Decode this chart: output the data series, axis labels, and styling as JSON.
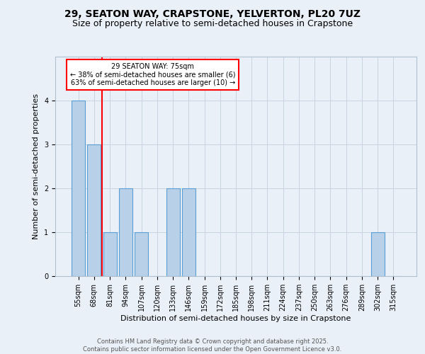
{
  "title_line1": "29, SEATON WAY, CRAPSTONE, YELVERTON, PL20 7UZ",
  "title_line2": "Size of property relative to semi-detached houses in Crapstone",
  "xlabel": "Distribution of semi-detached houses by size in Crapstone",
  "ylabel": "Number of semi-detached properties",
  "bin_labels": [
    "55sqm",
    "68sqm",
    "81sqm",
    "94sqm",
    "107sqm",
    "120sqm",
    "133sqm",
    "146sqm",
    "159sqm",
    "172sqm",
    "185sqm",
    "198sqm",
    "211sqm",
    "224sqm",
    "237sqm",
    "250sqm",
    "263sqm",
    "276sqm",
    "289sqm",
    "302sqm",
    "315sqm"
  ],
  "bar_values": [
    4,
    3,
    1,
    2,
    1,
    0,
    2,
    2,
    0,
    0,
    0,
    0,
    0,
    0,
    0,
    0,
    0,
    0,
    0,
    1,
    0
  ],
  "bar_color": "#b8d0e8",
  "bar_edge_color": "#5a9fd4",
  "vline_x": 1.5,
  "vline_color": "red",
  "annotation_title": "29 SEATON WAY: 75sqm",
  "annotation_line1": "← 38% of semi-detached houses are smaller (6)",
  "annotation_line2": "63% of semi-detached houses are larger (10) →",
  "annotation_box_color": "white",
  "annotation_box_edge_color": "red",
  "ylim": [
    0,
    5
  ],
  "yticks": [
    0,
    1,
    2,
    3,
    4,
    5
  ],
  "background_color": "#eaf0f8",
  "plot_bg_color": "#eaf0f8",
  "footer_line1": "Contains HM Land Registry data © Crown copyright and database right 2025.",
  "footer_line2": "Contains public sector information licensed under the Open Government Licence v3.0.",
  "title_fontsize": 10,
  "subtitle_fontsize": 9,
  "axis_label_fontsize": 8,
  "tick_fontsize": 7,
  "annotation_fontsize": 7,
  "footer_fontsize": 6
}
